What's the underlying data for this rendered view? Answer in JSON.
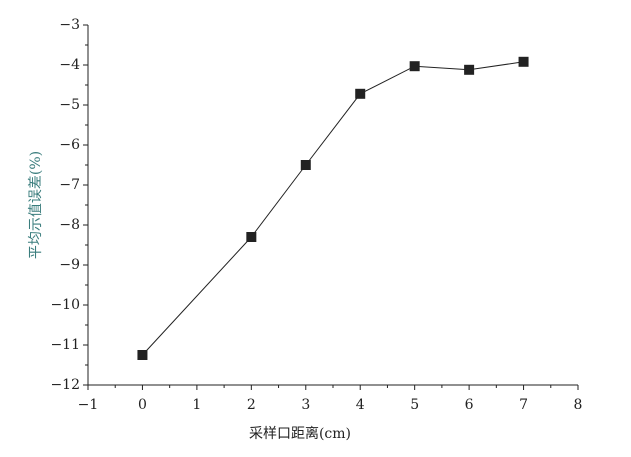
{
  "chart_data": {
    "type": "line",
    "x_label": "采样口距离(cm)",
    "y_label": "平均示值误差(%)",
    "x": [
      0,
      2,
      3,
      4,
      5,
      6,
      7
    ],
    "series": [
      {
        "color": "#222222",
        "values": [
          -11.25,
          -8.3,
          -6.5,
          -4.72,
          -4.03,
          -4.12,
          -3.92
        ]
      }
    ],
    "xlim": [
      -1,
      8
    ],
    "xticks": [
      {
        "value": -1,
        "label": "−1"
      },
      0,
      1,
      2,
      3,
      4,
      5,
      6,
      7,
      8
    ],
    "ylim": [
      -12,
      -3
    ],
    "yticks": [
      {
        "value": -12,
        "label": "−12"
      },
      {
        "value": -11,
        "label": "−11"
      },
      {
        "value": -10,
        "label": "−10"
      },
      {
        "value": -9,
        "label": "−9"
      },
      {
        "value": -8,
        "label": "−8"
      },
      {
        "value": -7,
        "label": "−7"
      },
      {
        "value": -6,
        "label": "−6"
      },
      {
        "value": -5,
        "label": "−5"
      },
      {
        "value": -4,
        "label": "−4"
      },
      {
        "value": -3,
        "label": "−3"
      }
    ],
    "grid": false
  }
}
